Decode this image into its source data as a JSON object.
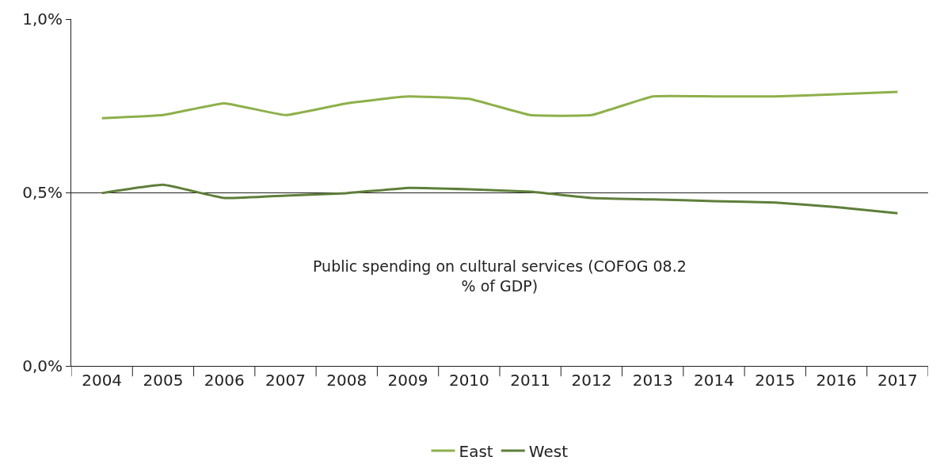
{
  "chart_data": {
    "type": "line",
    "title": "Public spending on cultural services (COFOG 08.2\n% of GDP)",
    "categories": [
      "2004",
      "2005",
      "2006",
      "2007",
      "2008",
      "2009",
      "2010",
      "2011",
      "2012",
      "2013",
      "2014",
      "2015",
      "2016",
      "2017"
    ],
    "series": [
      {
        "name": "East",
        "color": "#8db04a",
        "values": [
          0.714,
          0.723,
          0.757,
          0.723,
          0.757,
          0.777,
          0.77,
          0.723,
          0.723,
          0.777,
          0.777,
          0.777,
          0.783,
          0.79
        ]
      },
      {
        "name": "West",
        "color": "#5e7f3a",
        "values": [
          0.498,
          0.522,
          0.484,
          0.491,
          0.498,
          0.513,
          0.509,
          0.502,
          0.484,
          0.48,
          0.475,
          0.471,
          0.458,
          0.44
        ]
      }
    ],
    "ylim": [
      0,
      1
    ],
    "yticks": [
      {
        "value": 0,
        "label": "0,0%"
      },
      {
        "value": 0.5,
        "label": "0,5%"
      },
      {
        "value": 1,
        "label": "1,0%"
      }
    ],
    "grid": "y",
    "legend": "bottom",
    "marker": "none",
    "line_style": "solid"
  }
}
